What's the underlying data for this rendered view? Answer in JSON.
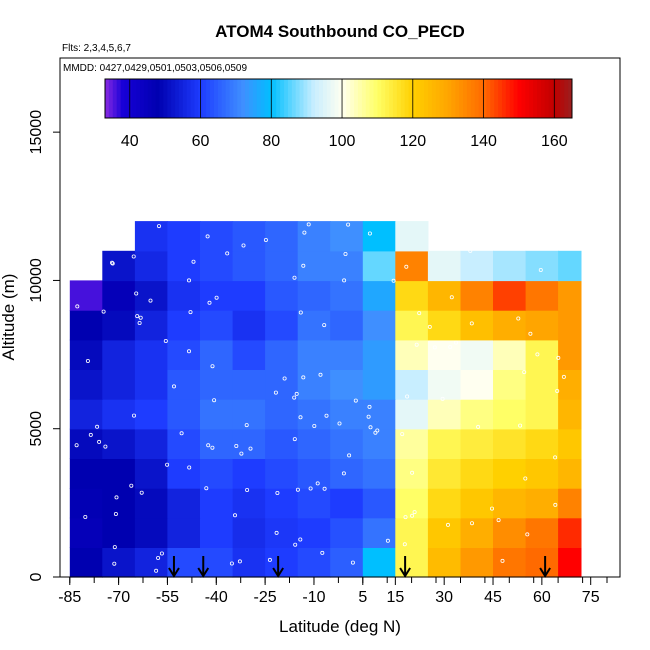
{
  "chart_data": {
    "type": "heatmap",
    "title": "ATOM4 Southbound CO_PECD",
    "flights_note": "Flts: 2,3,4,5,6,7",
    "mmdd_note": "MMDD: 0427,0429,0501,0503,0506,0509",
    "xlabel": "Latitude (deg N)",
    "ylabel": "Altitude (m)",
    "xlim": [
      -88,
      84
    ],
    "ylim": [
      0,
      17500
    ],
    "x_ticks": [
      {
        "value": -85,
        "label": "-85"
      },
      {
        "value": -70,
        "label": "-70"
      },
      {
        "value": -55,
        "label": "-55"
      },
      {
        "value": -40,
        "label": "-40"
      },
      {
        "value": -25,
        "label": "-25"
      },
      {
        "value": -10,
        "label": "-10"
      },
      {
        "value": 5,
        "label": "5"
      },
      {
        "value": 15,
        "label": "15"
      },
      {
        "value": 30,
        "label": "30"
      },
      {
        "value": 45,
        "label": "45"
      },
      {
        "value": 60,
        "label": "60"
      },
      {
        "value": 75,
        "label": "75"
      }
    ],
    "y_ticks": [
      {
        "value": 0,
        "label": "0"
      },
      {
        "value": 5000,
        "label": "5000"
      },
      {
        "value": 10000,
        "label": "10000"
      },
      {
        "value": 15000,
        "label": "15000"
      }
    ],
    "colorbar": {
      "range": [
        33,
        165
      ],
      "ticks": [
        {
          "value": 40,
          "label": "40"
        },
        {
          "value": 60,
          "label": "60"
        },
        {
          "value": 80,
          "label": "80"
        },
        {
          "value": 100,
          "label": "100"
        },
        {
          "value": 120,
          "label": "120"
        },
        {
          "value": 140,
          "label": "140"
        },
        {
          "value": 160,
          "label": "160"
        }
      ],
      "stops": [
        [
          33,
          "#8a2be2"
        ],
        [
          38,
          "#1800d8"
        ],
        [
          48,
          "#0000b0"
        ],
        [
          60,
          "#1e3cff"
        ],
        [
          72,
          "#3f8fff"
        ],
        [
          80,
          "#00bfff"
        ],
        [
          92,
          "#c8eeff"
        ],
        [
          100,
          "#fffff0"
        ],
        [
          110,
          "#ffff66"
        ],
        [
          120,
          "#ffd000"
        ],
        [
          130,
          "#ffa500"
        ],
        [
          140,
          "#ff6a00"
        ],
        [
          150,
          "#ff0000"
        ],
        [
          160,
          "#c00000"
        ],
        [
          165,
          "#9b2020"
        ]
      ]
    },
    "field": {
      "lat_edges": [
        -85,
        -75,
        -65,
        -55,
        -45,
        -35,
        -25,
        -15,
        -5,
        5,
        15,
        25,
        35,
        45,
        55,
        65,
        72
      ],
      "alt_edges": [
        0,
        1000,
        2000,
        3000,
        4000,
        5000,
        6000,
        7000,
        8000,
        9000,
        10000,
        11000,
        12000
      ],
      "values": [
        [
          48,
          52,
          55,
          62,
          62,
          58,
          60,
          62,
          65,
          80,
          112,
          125,
          132,
          138,
          140,
          150
        ],
        [
          46,
          48,
          50,
          55,
          60,
          57,
          59,
          60,
          63,
          68,
          112,
          122,
          128,
          134,
          138,
          146
        ],
        [
          47,
          48,
          50,
          55,
          60,
          58,
          60,
          62,
          60,
          64,
          110,
          118,
          122,
          126,
          128,
          136
        ],
        [
          48,
          48,
          52,
          60,
          62,
          60,
          62,
          64,
          66,
          68,
          108,
          115,
          118,
          120,
          122,
          126
        ],
        [
          50,
          52,
          55,
          62,
          66,
          66,
          64,
          66,
          68,
          70,
          106,
          112,
          114,
          116,
          118,
          122
        ],
        [
          55,
          58,
          60,
          64,
          68,
          68,
          66,
          68,
          70,
          70,
          96,
          104,
          108,
          110,
          112,
          126
        ],
        [
          52,
          55,
          58,
          64,
          66,
          66,
          66,
          70,
          72,
          74,
          92,
          98,
          100,
          108,
          112,
          128
        ],
        [
          50,
          55,
          58,
          62,
          66,
          62,
          66,
          70,
          70,
          74,
          104,
          100,
          98,
          104,
          112,
          132
        ],
        [
          48,
          50,
          55,
          60,
          62,
          58,
          62,
          68,
          66,
          72,
          112,
          118,
          124,
          128,
          130,
          132
        ],
        [
          36,
          46,
          52,
          58,
          60,
          60,
          64,
          66,
          68,
          76,
          118,
          126,
          136,
          144,
          138,
          132
        ],
        [
          null,
          52,
          56,
          60,
          62,
          64,
          66,
          70,
          70,
          86,
          136,
          96,
          92,
          90,
          88,
          86
        ],
        [
          null,
          null,
          58,
          60,
          62,
          64,
          66,
          70,
          72,
          80,
          96,
          null,
          null,
          null,
          null,
          null
        ]
      ]
    },
    "profile_arrows_lat": [
      -53,
      -44,
      -21,
      18,
      61
    ],
    "samples_note": "white circles mark sample locations"
  }
}
